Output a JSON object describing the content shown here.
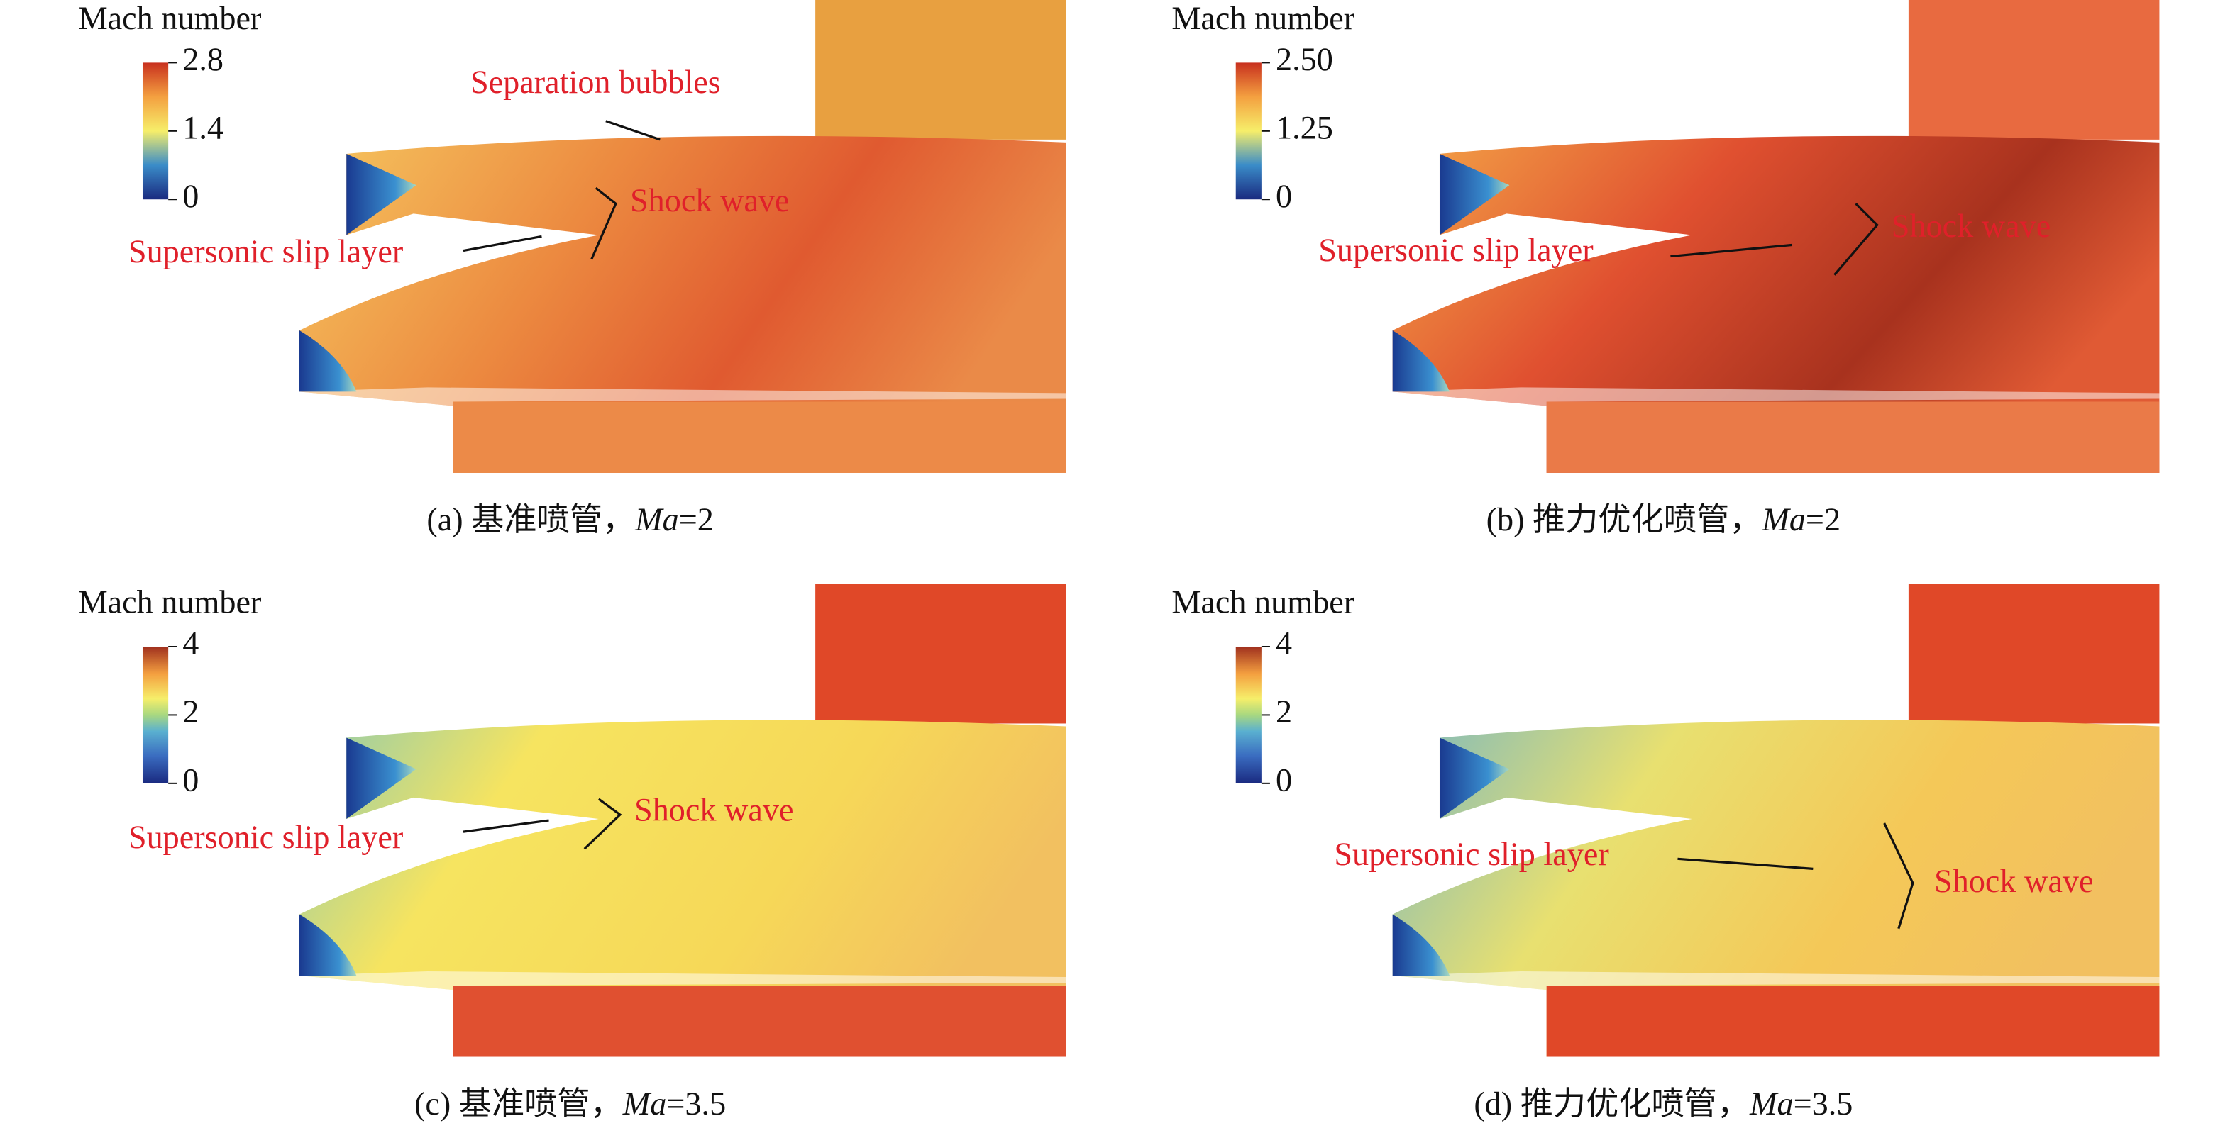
{
  "panels": [
    {
      "colorbar": {
        "title": "Mach number",
        "ticks": [
          "2.8",
          "1.4",
          "0"
        ]
      },
      "annotations": [
        "Separation bubbles",
        "Shock wave",
        "Supersonic slip layer"
      ],
      "caption": {
        "prefix": "(a) 基准喷管，",
        "italic": "Ma",
        "suffix": "=2"
      }
    },
    {
      "colorbar": {
        "title": "Mach number",
        "ticks": [
          "2.50",
          "1.25",
          "0"
        ]
      },
      "annotations": [
        "Shock wave",
        "Supersonic slip layer"
      ],
      "caption": {
        "prefix": "(b) 推力优化喷管，",
        "italic": "Ma",
        "suffix": "=2"
      }
    },
    {
      "colorbar": {
        "title": "Mach number",
        "ticks": [
          "4",
          "2",
          "0"
        ]
      },
      "annotations": [
        "Shock wave",
        "Supersonic slip layer"
      ],
      "caption": {
        "prefix": "(c) 基准喷管，",
        "italic": "Ma",
        "suffix": "=3.5"
      }
    },
    {
      "colorbar": {
        "title": "Mach number",
        "ticks": [
          "4",
          "2",
          "0"
        ]
      },
      "annotations": [
        "Supersonic slip layer",
        "Shock wave"
      ],
      "caption": {
        "prefix": "(d) 推力优化喷管，",
        "italic": "Ma",
        "suffix": "=3.5"
      }
    }
  ]
}
